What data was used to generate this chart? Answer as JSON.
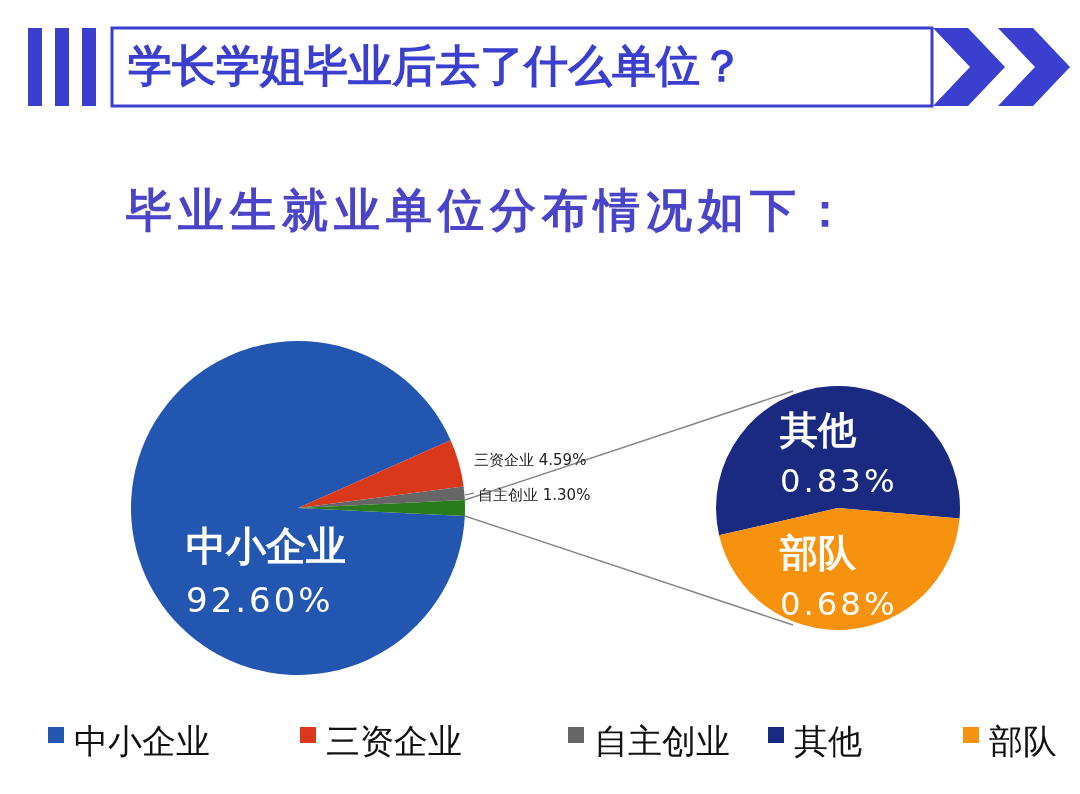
{
  "chart_data": [
    {
      "type": "pie",
      "title": "学长学姐毕业后去了什么单位？",
      "subtitle": "毕业生就业单位分布情况如下：",
      "categories": [
        "中小企业",
        "三资企业",
        "自主创业",
        null
      ],
      "values": [
        92.6,
        4.59,
        1.3,
        1.51
      ],
      "colors": [
        "#2356b0",
        "#d9391a",
        "#666666",
        "#2a7a1e"
      ],
      "value_labels": [
        "92.60%",
        "4.59%",
        "1.30%",
        null
      ],
      "legend": "bottom"
    },
    {
      "type": "pie",
      "categories": [
        "其他",
        "部队"
      ],
      "values": [
        0.83,
        0.68
      ],
      "colors": [
        "#1a2a80",
        "#f7920e"
      ],
      "value_labels": [
        "0.83%",
        "0.68%"
      ],
      "legend": "bottom"
    }
  ]
}
